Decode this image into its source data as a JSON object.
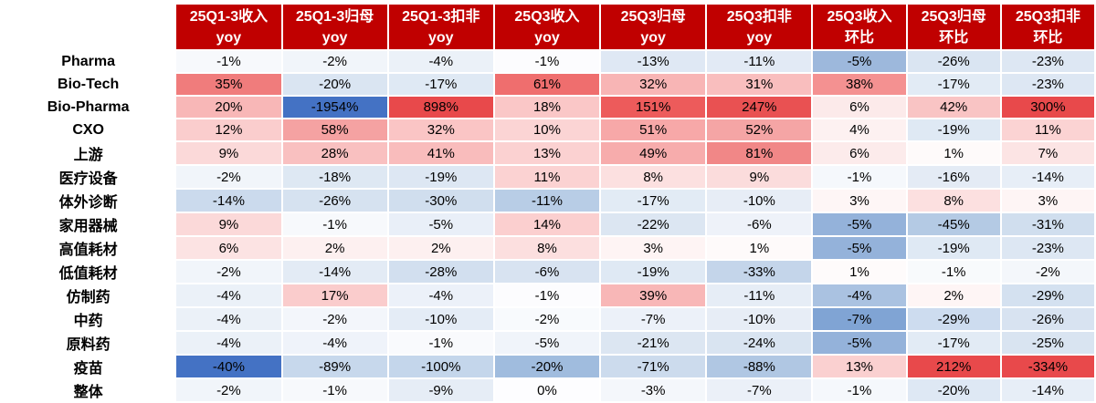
{
  "colors": {
    "header_bg": "#C00000",
    "header_text": "#FFFFFF",
    "grid": "#FFFFFF",
    "strong_red": "#E8494B",
    "strong_blue": "#4472C4"
  },
  "table": {
    "corner_label": "",
    "columns": [
      {
        "title": "25Q1-3收入",
        "subtitle": "yoy",
        "group": "yoy"
      },
      {
        "title": "25Q1-3归母",
        "subtitle": "yoy",
        "group": "yoy"
      },
      {
        "title": "25Q1-3扣非",
        "subtitle": "yoy",
        "group": "yoy"
      },
      {
        "title": "25Q3收入",
        "subtitle": "yoy",
        "group": "yoy"
      },
      {
        "title": "25Q3归母",
        "subtitle": "yoy",
        "group": "yoy"
      },
      {
        "title": "25Q3扣非",
        "subtitle": "yoy",
        "group": "yoy"
      },
      {
        "title": "25Q3收入",
        "subtitle": "环比",
        "group": "huanbi"
      },
      {
        "title": "25Q3归母",
        "subtitle": "环比",
        "group": "huanbi"
      },
      {
        "title": "25Q3扣非",
        "subtitle": "环比",
        "group": "huanbi"
      }
    ],
    "rows": [
      {
        "label": "Pharma",
        "cells": [
          [
            "-1%",
            "#F7F9FC"
          ],
          [
            "-2%",
            "#F1F5FA"
          ],
          [
            "-4%",
            "#EBF1F8"
          ],
          [
            "-1%",
            "#FCFCFE"
          ],
          [
            "-13%",
            "#DFE8F4"
          ],
          [
            "-11%",
            "#E2EAF5"
          ],
          [
            "-5%",
            "#9DB8DC"
          ],
          [
            "-26%",
            "#DAE5F2"
          ],
          [
            "-23%",
            "#DDE7F3"
          ]
        ]
      },
      {
        "label": "Bio-Tech",
        "cells": [
          [
            "35%",
            "#F07C7C"
          ],
          [
            "-20%",
            "#DAE5F2"
          ],
          [
            "-17%",
            "#DFE9F4"
          ],
          [
            "61%",
            "#EF6E6E"
          ],
          [
            "32%",
            "#F8B5B5"
          ],
          [
            "31%",
            "#F9BEBE"
          ],
          [
            "38%",
            "#F49191"
          ],
          [
            "-17%",
            "#E2EBF5"
          ],
          [
            "-23%",
            "#DDE7F3"
          ]
        ]
      },
      {
        "label": "Bio-Pharma",
        "cells": [
          [
            "20%",
            "#F8B7B7"
          ],
          [
            "-1954%",
            "#4472C4"
          ],
          [
            "898%",
            "#E8494B"
          ],
          [
            "18%",
            "#FAC7C7"
          ],
          [
            "151%",
            "#ED5B5B"
          ],
          [
            "247%",
            "#E95152"
          ],
          [
            "6%",
            "#FCEAEA"
          ],
          [
            "42%",
            "#F9C4C4"
          ],
          [
            "300%",
            "#E8494B"
          ]
        ]
      },
      {
        "label": "CXO",
        "cells": [
          [
            "12%",
            "#FACDCD"
          ],
          [
            "58%",
            "#F5A2A2"
          ],
          [
            "32%",
            "#FAC5C5"
          ],
          [
            "10%",
            "#FBD4D4"
          ],
          [
            "51%",
            "#F7A8A8"
          ],
          [
            "52%",
            "#F5A5A5"
          ],
          [
            "4%",
            "#FDF1F1"
          ],
          [
            "-19%",
            "#DFE9F4"
          ],
          [
            "11%",
            "#FBD3D3"
          ]
        ]
      },
      {
        "label": "上游",
        "cells": [
          [
            "9%",
            "#FBD9D9"
          ],
          [
            "28%",
            "#F9C0C0"
          ],
          [
            "41%",
            "#F9BCBC"
          ],
          [
            "13%",
            "#FBD1D1"
          ],
          [
            "49%",
            "#F7ACAC"
          ],
          [
            "81%",
            "#F18787"
          ],
          [
            "6%",
            "#FCEBEB"
          ],
          [
            "1%",
            "#FEFAFA"
          ],
          [
            "7%",
            "#FCE4E4"
          ]
        ]
      },
      {
        "label": "医疗设备",
        "cells": [
          [
            "-2%",
            "#F1F5FA"
          ],
          [
            "-18%",
            "#DEE8F3"
          ],
          [
            "-19%",
            "#DDE7F3"
          ],
          [
            "11%",
            "#FBD2D2"
          ],
          [
            "8%",
            "#FCE0E0"
          ],
          [
            "9%",
            "#FBDCDC"
          ],
          [
            "-1%",
            "#F5F8FC"
          ],
          [
            "-16%",
            "#E4EBF5"
          ],
          [
            "-14%",
            "#E7EEF7"
          ]
        ]
      },
      {
        "label": "体外诊断",
        "cells": [
          [
            "-14%",
            "#CBDAED"
          ],
          [
            "-26%",
            "#D6E2F0"
          ],
          [
            "-30%",
            "#D0DEEE"
          ],
          [
            "-11%",
            "#B8CDE6"
          ],
          [
            "-17%",
            "#E2EBF5"
          ],
          [
            "-10%",
            "#E7EDF6"
          ],
          [
            "3%",
            "#FEF6F6"
          ],
          [
            "8%",
            "#FCE0E0"
          ],
          [
            "3%",
            "#FEF5F5"
          ]
        ]
      },
      {
        "label": "家用器械",
        "cells": [
          [
            "9%",
            "#FBD9D9"
          ],
          [
            "-1%",
            "#F7F9FC"
          ],
          [
            "-5%",
            "#E9EFF8"
          ],
          [
            "14%",
            "#FBCFCF"
          ],
          [
            "-22%",
            "#DCE6F2"
          ],
          [
            "-6%",
            "#EEF2F9"
          ],
          [
            "-5%",
            "#94B2DA"
          ],
          [
            "-45%",
            "#B4CAE4"
          ],
          [
            "-31%",
            "#D0DEEE"
          ]
        ]
      },
      {
        "label": "高值耗材",
        "cells": [
          [
            "6%",
            "#FCE3E3"
          ],
          [
            "2%",
            "#FDF0F0"
          ],
          [
            "2%",
            "#FDF0F0"
          ],
          [
            "8%",
            "#FCDFDF"
          ],
          [
            "3%",
            "#FEF4F4"
          ],
          [
            "1%",
            "#FEFAFA"
          ],
          [
            "-5%",
            "#94B2DA"
          ],
          [
            "-19%",
            "#DFE9F4"
          ],
          [
            "-23%",
            "#DDE7F3"
          ]
        ]
      },
      {
        "label": "低值耗材",
        "cells": [
          [
            "-2%",
            "#F1F5FA"
          ],
          [
            "-14%",
            "#E3EBF5"
          ],
          [
            "-28%",
            "#D2DFEF"
          ],
          [
            "-6%",
            "#D8E3F1"
          ],
          [
            "-19%",
            "#DFE9F4"
          ],
          [
            "-33%",
            "#C4D5EA"
          ],
          [
            "1%",
            "#FEFBFB"
          ],
          [
            "-1%",
            "#F8FAFC"
          ],
          [
            "-2%",
            "#F4F7FB"
          ]
        ]
      },
      {
        "label": "仿制药",
        "cells": [
          [
            "-4%",
            "#EBF1F8"
          ],
          [
            "17%",
            "#FACCCC"
          ],
          [
            "-4%",
            "#ECF1F9"
          ],
          [
            "-1%",
            "#FCFCFE"
          ],
          [
            "39%",
            "#F8B7B7"
          ],
          [
            "-11%",
            "#E6EDF6"
          ],
          [
            "-4%",
            "#AAC2E1"
          ],
          [
            "2%",
            "#FEF5F5"
          ],
          [
            "-29%",
            "#D4E1F0"
          ]
        ]
      },
      {
        "label": "中药",
        "cells": [
          [
            "-4%",
            "#EBF1F8"
          ],
          [
            "-2%",
            "#F3F6FB"
          ],
          [
            "-10%",
            "#E4ECF6"
          ],
          [
            "-2%",
            "#F8FAFD"
          ],
          [
            "-7%",
            "#ECF1F9"
          ],
          [
            "-10%",
            "#E7EDF6"
          ],
          [
            "-7%",
            "#80A4D4"
          ],
          [
            "-29%",
            "#CDDCEF"
          ],
          [
            "-26%",
            "#D8E3F1"
          ]
        ]
      },
      {
        "label": "原料药",
        "cells": [
          [
            "-4%",
            "#EBF1F8"
          ],
          [
            "-4%",
            "#EFF3FA"
          ],
          [
            "-1%",
            "#F9FAFD"
          ],
          [
            "-5%",
            "#F0F4FA"
          ],
          [
            "-21%",
            "#DCE6F2"
          ],
          [
            "-24%",
            "#D9E4F1"
          ],
          [
            "-5%",
            "#94B2DA"
          ],
          [
            "-17%",
            "#E2EBF5"
          ],
          [
            "-25%",
            "#D9E4F1"
          ]
        ]
      },
      {
        "label": "疫苗",
        "cells": [
          [
            "-40%",
            "#4472C4"
          ],
          [
            "-89%",
            "#C7D8EC"
          ],
          [
            "-100%",
            "#C4D6EB"
          ],
          [
            "-20%",
            "#A0BCDE"
          ],
          [
            "-71%",
            "#CCDBED"
          ],
          [
            "-88%",
            "#B0C7E3"
          ],
          [
            "13%",
            "#FAD0D0"
          ],
          [
            "212%",
            "#E8494B"
          ],
          [
            "-334%",
            "#E8494B"
          ]
        ]
      },
      {
        "label": "整体",
        "cells": [
          [
            "-2%",
            "#F1F5FA"
          ],
          [
            "-1%",
            "#F7F9FC"
          ],
          [
            "-9%",
            "#E6EDF6"
          ],
          [
            "0%",
            "#FDFDFF"
          ],
          [
            "-3%",
            "#F4F7FB"
          ],
          [
            "-7%",
            "#EBF0F8"
          ],
          [
            "-1%",
            "#F5F8FC"
          ],
          [
            "-20%",
            "#DEE8F4"
          ],
          [
            "-14%",
            "#E7EEF7"
          ]
        ]
      }
    ]
  },
  "chart_data": {
    "type": "heatmap",
    "title": "",
    "unit": "percent",
    "columns": [
      "25Q1-3收入yoy",
      "25Q1-3归母yoy",
      "25Q1-3扣非yoy",
      "25Q3收入yoy",
      "25Q3归母yoy",
      "25Q3扣非yoy",
      "25Q3收入环比",
      "25Q3归母环比",
      "25Q3扣非环比"
    ],
    "rows": [
      "Pharma",
      "Bio-Tech",
      "Bio-Pharma",
      "CXO",
      "上游",
      "医疗设备",
      "体外诊断",
      "家用器械",
      "高值耗材",
      "低值耗材",
      "仿制药",
      "中药",
      "原料药",
      "疫苗",
      "整体"
    ],
    "values": [
      [
        -1,
        -2,
        -4,
        -1,
        -13,
        -11,
        -5,
        -26,
        -23
      ],
      [
        35,
        -20,
        -17,
        61,
        32,
        31,
        38,
        -17,
        -23
      ],
      [
        20,
        -1954,
        898,
        18,
        151,
        247,
        6,
        42,
        300
      ],
      [
        12,
        58,
        32,
        10,
        51,
        52,
        4,
        -19,
        11
      ],
      [
        9,
        28,
        41,
        13,
        49,
        81,
        6,
        1,
        7
      ],
      [
        -2,
        -18,
        -19,
        11,
        8,
        9,
        -1,
        -16,
        -14
      ],
      [
        -14,
        -26,
        -30,
        -11,
        -17,
        -10,
        3,
        8,
        3
      ],
      [
        9,
        -1,
        -5,
        14,
        -22,
        -6,
        -5,
        -45,
        -31
      ],
      [
        6,
        2,
        2,
        8,
        3,
        1,
        -5,
        -19,
        -23
      ],
      [
        -2,
        -14,
        -28,
        -6,
        -19,
        -33,
        1,
        -1,
        -2
      ],
      [
        -4,
        17,
        -4,
        -1,
        39,
        -11,
        -4,
        2,
        -29
      ],
      [
        -4,
        -2,
        -10,
        -2,
        -7,
        -10,
        -7,
        -29,
        -26
      ],
      [
        -4,
        -4,
        -1,
        -5,
        -21,
        -24,
        -5,
        -17,
        -25
      ],
      [
        -40,
        -89,
        -100,
        -20,
        -71,
        -88,
        13,
        212,
        -334
      ],
      [
        -2,
        -1,
        -9,
        0,
        -3,
        -7,
        -1,
        -20,
        -14
      ]
    ],
    "color_scale": {
      "low": "#4472C4",
      "mid": "#FFFFFF",
      "high": "#E8494B",
      "scope": "per-column"
    },
    "legend": "none",
    "grid": "white 2px separators"
  }
}
